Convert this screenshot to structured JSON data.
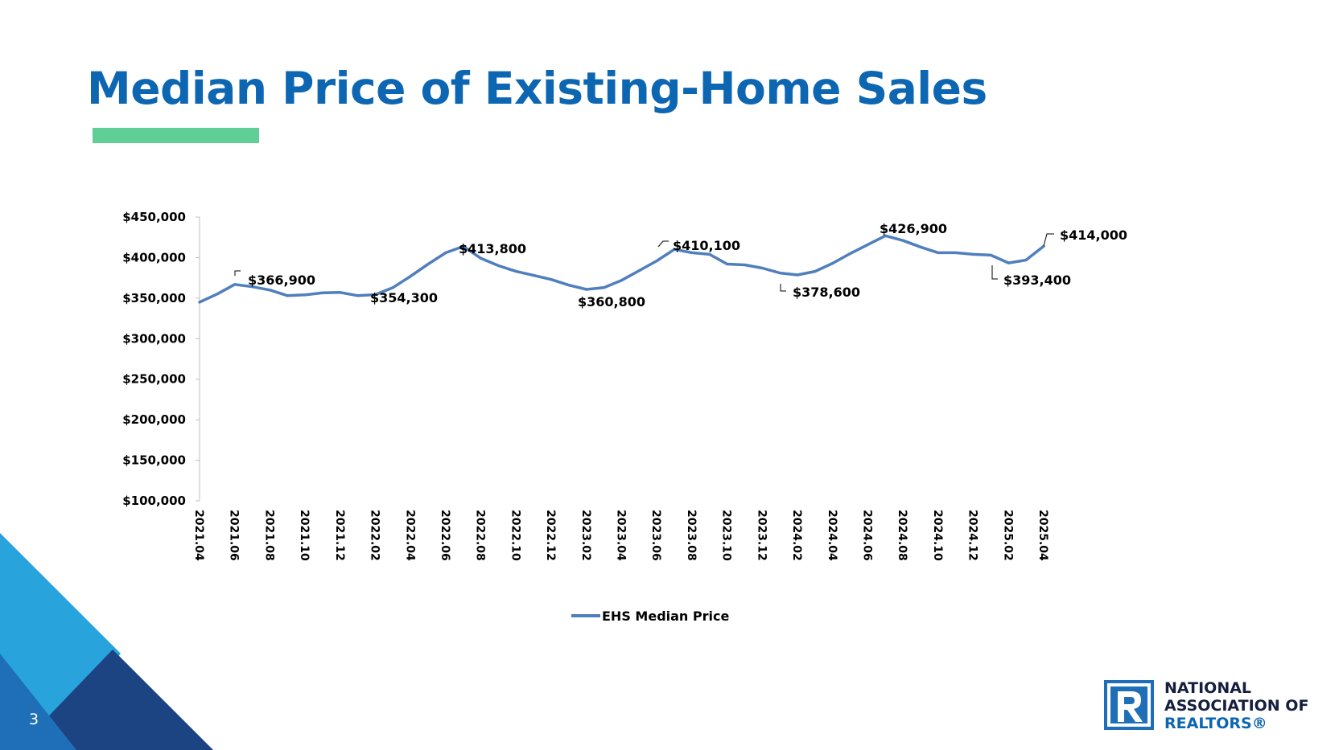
{
  "slide": {
    "title": "Median Price of Existing-Home Sales",
    "page_number": "3"
  },
  "brand": {
    "line1": "NATIONAL",
    "line2": "ASSOCIATION OF",
    "line3": "REALTORS®",
    "logo_glyph": "R",
    "colors": {
      "title_blue": "#0d66b2",
      "accent_green": "#5fcf97",
      "series_blue": "#4f7fbc",
      "navy": "#1d4482",
      "light_blue": "#29a3db",
      "mid_blue": "#1e6fb8"
    }
  },
  "chart_data": {
    "type": "line",
    "categories": [
      "2021.04",
      "2021.05",
      "2021.06",
      "2021.07",
      "2021.08",
      "2021.09",
      "2021.10",
      "2021.11",
      "2021.12",
      "2022.01",
      "2022.02",
      "2022.03",
      "2022.04",
      "2022.05",
      "2022.06",
      "2022.07",
      "2022.08",
      "2022.09",
      "2022.10",
      "2022.11",
      "2022.12",
      "2023.01",
      "2023.02",
      "2023.03",
      "2023.04",
      "2023.05",
      "2023.06",
      "2023.07",
      "2023.08",
      "2023.09",
      "2023.10",
      "2023.11",
      "2023.12",
      "2024.01",
      "2024.02",
      "2024.03",
      "2024.04",
      "2024.05",
      "2024.06",
      "2024.07",
      "2024.08",
      "2024.09",
      "2024.10",
      "2024.11",
      "2024.12",
      "2025.01",
      "2025.02",
      "2025.03",
      "2025.04"
    ],
    "tick_labels": [
      "2021.04",
      "2021.06",
      "2021.08",
      "2021.10",
      "2021.12",
      "2022.02",
      "2022.04",
      "2022.06",
      "2022.08",
      "2022.10",
      "2022.12",
      "2023.02",
      "2023.04",
      "2023.06",
      "2023.08",
      "2023.10",
      "2023.12",
      "2024.02",
      "2024.04",
      "2024.06",
      "2024.08",
      "2024.10",
      "2024.12",
      "2025.02",
      "2025.04"
    ],
    "series": [
      {
        "name": "EHS Median Price",
        "color": "#4f7fbc",
        "values": [
          345000,
          355000,
          366900,
          364000,
          360000,
          353000,
          354000,
          356500,
          357000,
          353000,
          354300,
          363000,
          377000,
          392000,
          406000,
          413800,
          399000,
          390000,
          383000,
          378000,
          373000,
          366000,
          360800,
          363000,
          372000,
          384000,
          396000,
          410100,
          406000,
          404000,
          392000,
          391000,
          387000,
          381000,
          378600,
          383000,
          393000,
          405000,
          416000,
          426900,
          421000,
          413000,
          406000,
          406000,
          404000,
          403000,
          393400,
          397000,
          414000
        ]
      }
    ],
    "annotations": [
      {
        "index": 2,
        "label": "$366,900"
      },
      {
        "index": 10,
        "label": "$354,300"
      },
      {
        "index": 15,
        "label": "$413,800"
      },
      {
        "index": 22,
        "label": "$360,800"
      },
      {
        "index": 27,
        "label": "$410,100"
      },
      {
        "index": 34,
        "label": "$378,600"
      },
      {
        "index": 39,
        "label": "$426,900"
      },
      {
        "index": 46,
        "label": "$393,400"
      },
      {
        "index": 48,
        "label": "$414,000"
      }
    ],
    "y_ticks": [
      {
        "value": 100000,
        "label": "$100,000"
      },
      {
        "value": 150000,
        "label": "$150,000"
      },
      {
        "value": 200000,
        "label": "$200,000"
      },
      {
        "value": 250000,
        "label": "$250,000"
      },
      {
        "value": 300000,
        "label": "$300,000"
      },
      {
        "value": 350000,
        "label": "$350,000"
      },
      {
        "value": 400000,
        "label": "$400,000"
      },
      {
        "value": 450000,
        "label": "$450,000"
      }
    ],
    "ylim": [
      100000,
      450000
    ],
    "legend_position": "bottom",
    "grid": false
  }
}
